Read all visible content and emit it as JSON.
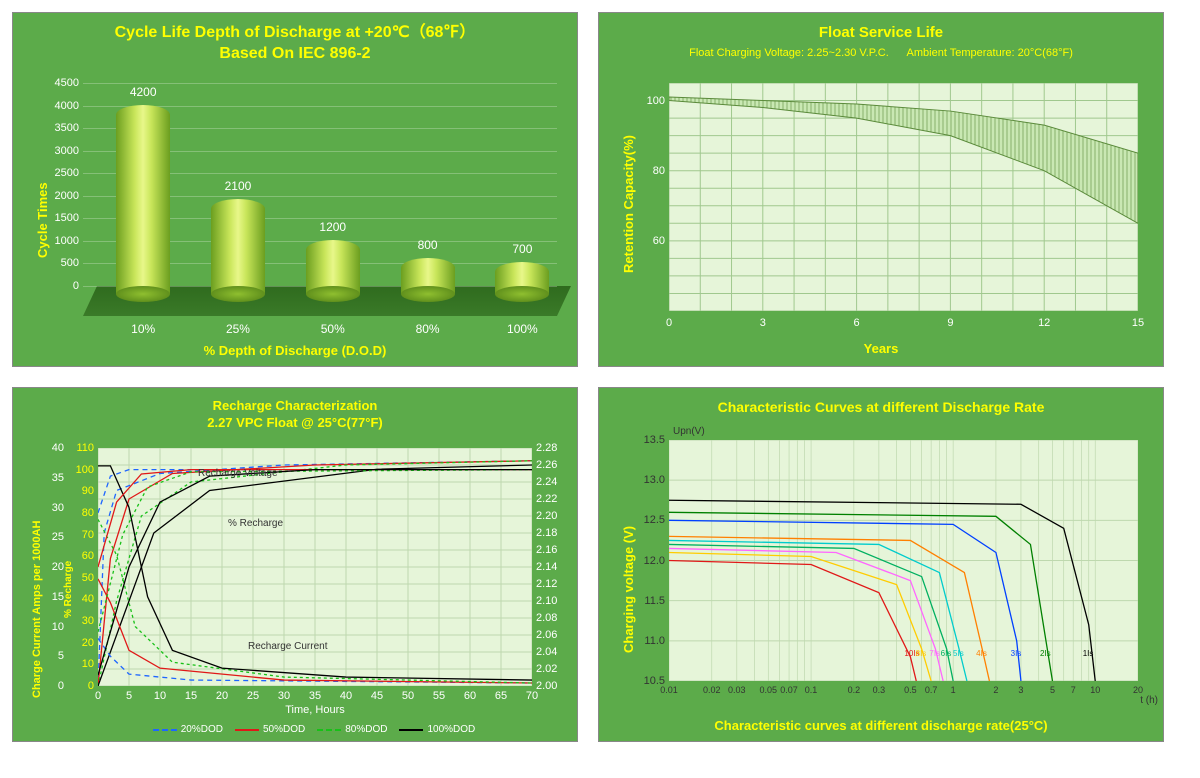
{
  "panel1": {
    "title_line1": "Cycle Life Depth of Discharge at +20℃（68℉）",
    "title_line2": "Based On IEC 896-2",
    "title_fontsize": 14,
    "type": "bar",
    "ylabel": "Cycle Times",
    "xlabel": "% Depth of Discharge (D.O.D)",
    "label_fontsize": 13,
    "categories": [
      "10%",
      "25%",
      "50%",
      "80%",
      "100%"
    ],
    "values": [
      4200,
      2100,
      1200,
      800,
      700
    ],
    "ylim": [
      0,
      4500
    ],
    "ytick_step": 500,
    "bar_color_gradient": [
      "#6b9e1f",
      "#c9e65a",
      "#e8f78a",
      "#c9e65a",
      "#6b9e1f"
    ],
    "background_color": "#5CAB4A",
    "floor_color": "#2f6b1e",
    "tick_color": "#ffffff",
    "title_color": "#FFFF00",
    "label_color": "#FFFF00"
  },
  "panel2": {
    "title": "Float Service Life",
    "subtitle_left": "Float Charging  Voltage: 2.25~2.30 V.P.C.",
    "subtitle_right": "Ambient Temperature: 20°C(68°F)",
    "title_fontsize": 15,
    "type": "area-band",
    "ylabel": "Retention Capacity(%)",
    "xlabel": "Years",
    "label_fontsize": 13,
    "xlim": [
      0,
      15
    ],
    "xtick_step": 3,
    "ylim": [
      40,
      105
    ],
    "yticks": [
      60,
      80,
      100
    ],
    "band_upper": [
      [
        0,
        101
      ],
      [
        3,
        100
      ],
      [
        6,
        99
      ],
      [
        9,
        97
      ],
      [
        12,
        93
      ],
      [
        15,
        85
      ]
    ],
    "band_lower": [
      [
        0,
        100
      ],
      [
        3,
        98
      ],
      [
        6,
        95
      ],
      [
        9,
        90
      ],
      [
        12,
        80
      ],
      [
        15,
        65
      ]
    ],
    "band_fill": "#c9e8b3",
    "grid_color": "#a0c88e",
    "plot_bg": "#e6f5d9",
    "background_color": "#5CAB4A",
    "title_color": "#FFFF00",
    "label_color": "#FFFF00"
  },
  "panel3": {
    "title_line1": "Recharge Characterization",
    "title_line2": "2.27 VPC Float @ 25°C(77°F)",
    "title_fontsize": 14,
    "type": "multi-line",
    "ylabel_left": "Charge Current Amps per 1000AH",
    "ylabel_left2": "% Recharge",
    "ylabel_right": "",
    "xlabel": "Time, Hours",
    "label_fontsize": 12,
    "xlim": [
      0,
      70
    ],
    "xtick_step": 5,
    "y_left_lim": [
      0,
      40
    ],
    "y_left_step": 5,
    "y_left2_lim": [
      0,
      110
    ],
    "y_left2_step": 10,
    "y_right_lim": [
      2.0,
      2.28
    ],
    "y_right_step": 0.02,
    "annotations": {
      "recharge_voltage": "Recharge Voltage",
      "pct_recharge": "% Recharge",
      "recharge_current": "Recharge Current"
    },
    "legend": [
      {
        "label": "20%DOD",
        "color": "#1e66ff",
        "dash": "5,4"
      },
      {
        "label": "50%DOD",
        "color": "#e01818",
        "dash": ""
      },
      {
        "label": "80%DOD",
        "color": "#18c018",
        "dash": "3,3"
      },
      {
        "label": "100%DOD",
        "color": "#000000",
        "dash": ""
      }
    ],
    "series_voltage": {
      "20": [
        [
          0,
          2.0
        ],
        [
          1,
          2.18
        ],
        [
          3,
          2.23
        ],
        [
          10,
          2.25
        ],
        [
          30,
          2.26
        ],
        [
          70,
          2.265
        ]
      ],
      "50": [
        [
          0,
          2.0
        ],
        [
          2,
          2.15
        ],
        [
          5,
          2.22
        ],
        [
          12,
          2.25
        ],
        [
          35,
          2.26
        ],
        [
          70,
          2.265
        ]
      ],
      "80": [
        [
          0,
          2.0
        ],
        [
          3,
          2.1
        ],
        [
          7,
          2.2
        ],
        [
          15,
          2.24
        ],
        [
          40,
          2.26
        ],
        [
          70,
          2.265
        ]
      ],
      "100": [
        [
          0,
          2.0
        ],
        [
          4,
          2.08
        ],
        [
          9,
          2.18
        ],
        [
          18,
          2.23
        ],
        [
          45,
          2.255
        ],
        [
          70,
          2.26
        ]
      ]
    },
    "series_current": {
      "20": [
        [
          0,
          8
        ],
        [
          2,
          5
        ],
        [
          5,
          2
        ],
        [
          15,
          1
        ],
        [
          70,
          0.5
        ]
      ],
      "50": [
        [
          0,
          18
        ],
        [
          2,
          14
        ],
        [
          5,
          6
        ],
        [
          10,
          3
        ],
        [
          30,
          1
        ],
        [
          70,
          0.5
        ]
      ],
      "80": [
        [
          0,
          28
        ],
        [
          3,
          22
        ],
        [
          6,
          10
        ],
        [
          12,
          4
        ],
        [
          30,
          1.5
        ],
        [
          70,
          0.5
        ]
      ],
      "100": [
        [
          0,
          37
        ],
        [
          2,
          37
        ],
        [
          5,
          30
        ],
        [
          8,
          15
        ],
        [
          12,
          6
        ],
        [
          20,
          3
        ],
        [
          40,
          1.5
        ],
        [
          70,
          1
        ]
      ]
    },
    "series_pct": {
      "20": [
        [
          0,
          80
        ],
        [
          2,
          97
        ],
        [
          5,
          100
        ],
        [
          70,
          100
        ]
      ],
      "50": [
        [
          0,
          55
        ],
        [
          3,
          85
        ],
        [
          7,
          98
        ],
        [
          15,
          100
        ],
        [
          70,
          100
        ]
      ],
      "80": [
        [
          0,
          25
        ],
        [
          4,
          70
        ],
        [
          8,
          92
        ],
        [
          15,
          99
        ],
        [
          70,
          100
        ]
      ],
      "100": [
        [
          0,
          5
        ],
        [
          5,
          55
        ],
        [
          10,
          85
        ],
        [
          18,
          97
        ],
        [
          35,
          100
        ],
        [
          70,
          100
        ]
      ]
    },
    "plot_bg": "#e6f5d9",
    "grid_color": "#bed8ae",
    "background_color": "#5CAB4A",
    "title_color": "#FFFF00",
    "label_color": "#FFFF00",
    "tick_color": "#ffffff"
  },
  "panel4": {
    "title": "Characteristic Curves at different Discharge Rate",
    "footer": "Characteristic curves at different discharge rate(25°C)",
    "title_fontsize": 14,
    "type": "line-logx",
    "ylabel": "Charging voltage (V)",
    "y_header": "Upn(V)",
    "xlabel": "t (h)",
    "label_fontsize": 13,
    "xlim_log": [
      0.01,
      20
    ],
    "xticks": [
      0.01,
      0.02,
      0.03,
      0.05,
      0.07,
      0.1,
      0.2,
      0.3,
      0.5,
      0.7,
      1,
      2,
      3,
      5,
      7,
      10,
      20
    ],
    "xtick_labels": [
      "0.01",
      "0.02",
      "0.03",
      "0.05",
      "0.07",
      "0.1",
      "0.2",
      "0.3",
      "0.5",
      "0.7",
      "1",
      "2",
      "3",
      "5",
      "7",
      "10",
      "20"
    ],
    "ylim": [
      10.5,
      13.5
    ],
    "ytick_step": 0.5,
    "curves": [
      {
        "label": "10Is",
        "color": "#e01818",
        "pts": [
          [
            0.01,
            12.0
          ],
          [
            0.1,
            11.95
          ],
          [
            0.3,
            11.6
          ],
          [
            0.5,
            10.8
          ],
          [
            0.55,
            10.5
          ]
        ]
      },
      {
        "label": "8Is",
        "color": "#ffcc00",
        "pts": [
          [
            0.01,
            12.1
          ],
          [
            0.1,
            12.05
          ],
          [
            0.4,
            11.7
          ],
          [
            0.6,
            10.9
          ],
          [
            0.7,
            10.5
          ]
        ]
      },
      {
        "label": "7Is",
        "color": "#ff66ff",
        "pts": [
          [
            0.01,
            12.15
          ],
          [
            0.15,
            12.1
          ],
          [
            0.5,
            11.75
          ],
          [
            0.75,
            10.9
          ],
          [
            0.85,
            10.5
          ]
        ]
      },
      {
        "label": "6Is",
        "color": "#00b060",
        "pts": [
          [
            0.01,
            12.2
          ],
          [
            0.2,
            12.15
          ],
          [
            0.6,
            11.8
          ],
          [
            0.9,
            10.9
          ],
          [
            1.0,
            10.5
          ]
        ]
      },
      {
        "label": "5Is",
        "color": "#00cccc",
        "pts": [
          [
            0.01,
            12.25
          ],
          [
            0.3,
            12.2
          ],
          [
            0.8,
            11.85
          ],
          [
            1.1,
            10.9
          ],
          [
            1.25,
            10.5
          ]
        ]
      },
      {
        "label": "4Is",
        "color": "#ff8000",
        "pts": [
          [
            0.01,
            12.3
          ],
          [
            0.5,
            12.25
          ],
          [
            1.2,
            11.85
          ],
          [
            1.6,
            10.9
          ],
          [
            1.8,
            10.5
          ]
        ]
      },
      {
        "label": "3Is",
        "color": "#0040ff",
        "pts": [
          [
            0.01,
            12.5
          ],
          [
            1,
            12.45
          ],
          [
            2,
            12.1
          ],
          [
            2.8,
            11.0
          ],
          [
            3.0,
            10.5
          ]
        ]
      },
      {
        "label": "2Is",
        "color": "#008000",
        "pts": [
          [
            0.01,
            12.6
          ],
          [
            2,
            12.55
          ],
          [
            3.5,
            12.2
          ],
          [
            4.5,
            11.0
          ],
          [
            5,
            10.5
          ]
        ]
      },
      {
        "label": "1Is",
        "color": "#000000",
        "pts": [
          [
            0.01,
            12.75
          ],
          [
            3,
            12.7
          ],
          [
            6,
            12.4
          ],
          [
            9,
            11.2
          ],
          [
            10,
            10.5
          ]
        ]
      }
    ],
    "plot_bg": "#e6f5d9",
    "grid_color": "#bed8ae",
    "background_color": "#5CAB4A",
    "title_color": "#FFFF00",
    "label_color": "#FFFF00"
  }
}
